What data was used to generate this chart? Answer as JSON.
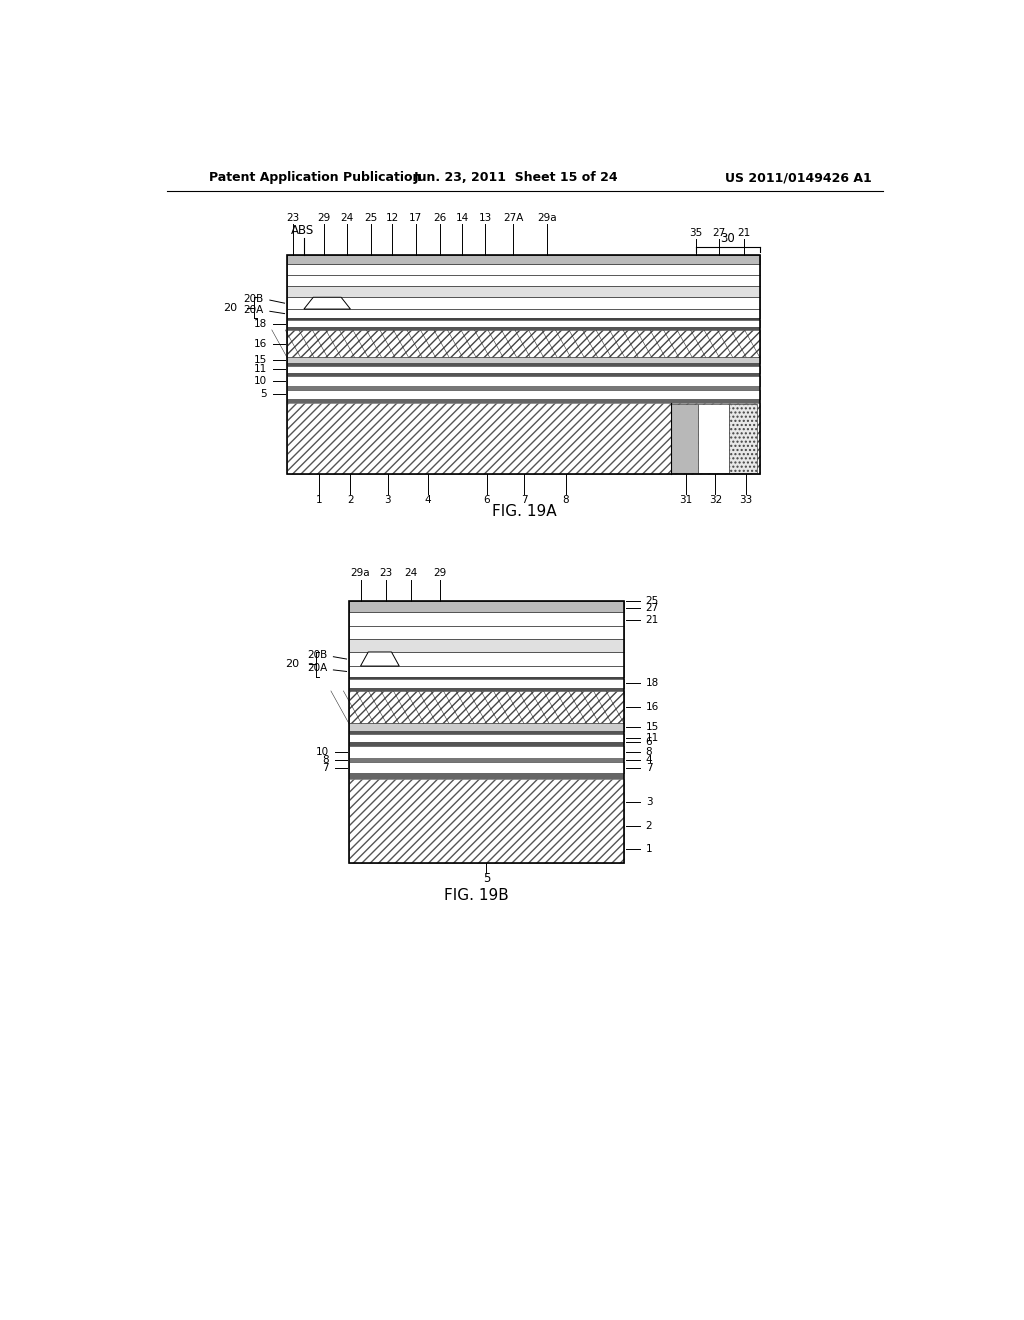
{
  "header_left": "Patent Application Publication",
  "header_mid": "Jun. 23, 2011  Sheet 15 of 24",
  "header_right": "US 2011/0149426 A1",
  "fig_a_title": "FIG. 19A",
  "fig_b_title": "FIG. 19B",
  "background_color": "#ffffff"
}
